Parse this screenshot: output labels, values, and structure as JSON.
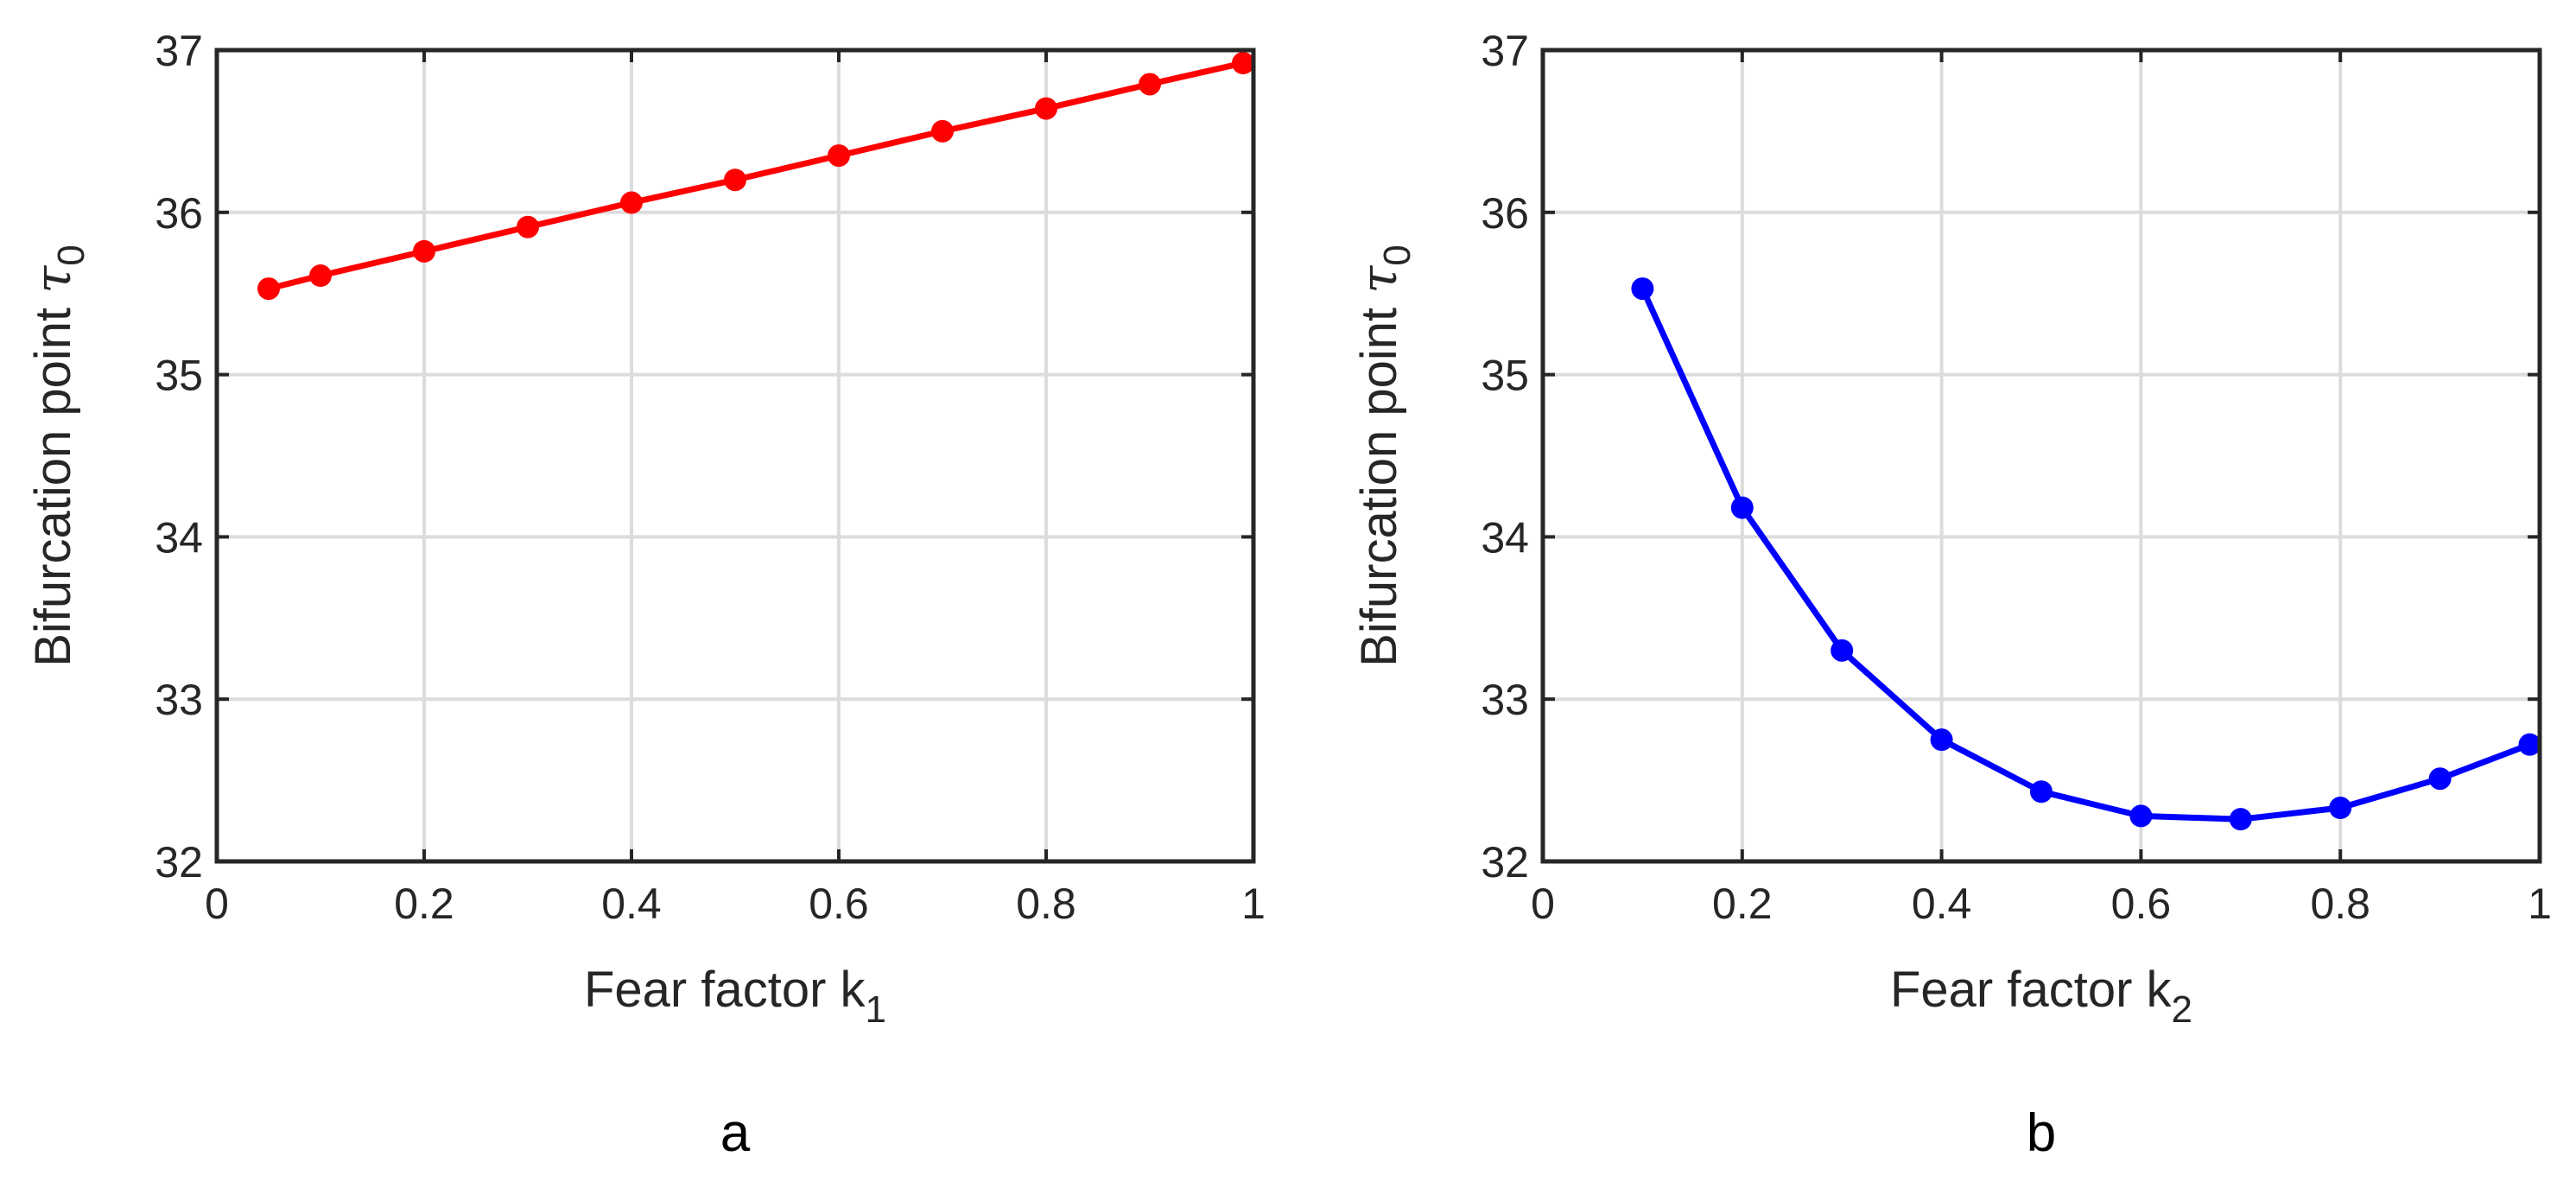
{
  "chart_data": [
    {
      "type": "line",
      "panel_label": "a",
      "xlabel": "Fear factor k",
      "xlabel_sub": "1",
      "ylabel": "Bifurcation point ",
      "ylabel_symbol": "τ",
      "ylabel_sub": "0",
      "xlim": [
        0,
        1
      ],
      "ylim": [
        32,
        37
      ],
      "xticks": [
        0,
        0.2,
        0.4,
        0.6,
        0.8,
        1
      ],
      "xtick_labels": [
        "0",
        "0.2",
        "0.4",
        "0.6",
        "0.8",
        "1"
      ],
      "yticks": [
        32,
        33,
        34,
        35,
        36,
        37
      ],
      "ytick_labels": [
        "32",
        "33",
        "34",
        "35",
        "36",
        "37"
      ],
      "grid": true,
      "series": [
        {
          "color": "#ff0000",
          "marker": "circle",
          "x": [
            0.05,
            0.1,
            0.2,
            0.3,
            0.4,
            0.5,
            0.6,
            0.7,
            0.8,
            0.9,
            0.99
          ],
          "y": [
            35.53,
            35.61,
            35.76,
            35.91,
            36.06,
            36.2,
            36.35,
            36.5,
            36.64,
            36.79,
            36.92
          ]
        }
      ]
    },
    {
      "type": "line",
      "panel_label": "b",
      "xlabel": "Fear factor k",
      "xlabel_sub": "2",
      "ylabel": "Bifurcation point ",
      "ylabel_symbol": "τ",
      "ylabel_sub": "0",
      "xlim": [
        0,
        1
      ],
      "ylim": [
        32,
        37
      ],
      "xticks": [
        0,
        0.2,
        0.4,
        0.6,
        0.8,
        1
      ],
      "xtick_labels": [
        "0",
        "0.2",
        "0.4",
        "0.6",
        "0.8",
        "1"
      ],
      "yticks": [
        32,
        33,
        34,
        35,
        36,
        37
      ],
      "ytick_labels": [
        "32",
        "33",
        "34",
        "35",
        "36",
        "37"
      ],
      "grid": true,
      "series": [
        {
          "color": "#0000ff",
          "marker": "circle",
          "x": [
            0.1,
            0.2,
            0.3,
            0.4,
            0.5,
            0.6,
            0.7,
            0.8,
            0.9,
            0.99
          ],
          "y": [
            35.53,
            34.18,
            33.3,
            32.75,
            32.43,
            32.28,
            32.26,
            32.33,
            32.51,
            32.72
          ]
        }
      ]
    }
  ]
}
